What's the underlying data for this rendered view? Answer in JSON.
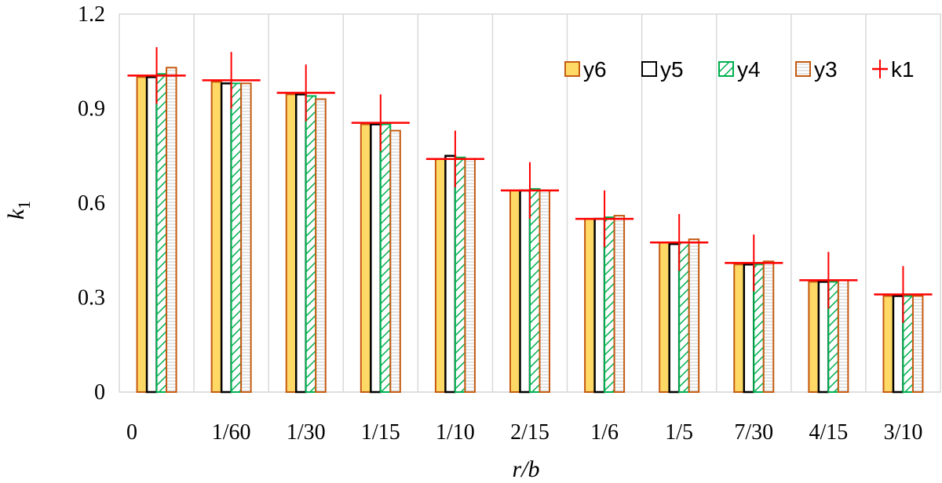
{
  "chart_data": {
    "type": "bar",
    "categories": [
      "0",
      "1/60",
      "1/30",
      "1/15",
      "1/10",
      "2/15",
      "1/6",
      "1/5",
      "7/30",
      "4/15",
      "3/10"
    ],
    "series": [
      {
        "name": "y6",
        "values": [
          1.0,
          0.985,
          0.945,
          0.85,
          0.74,
          0.64,
          0.55,
          0.475,
          0.405,
          0.35,
          0.305
        ],
        "fill": "#FFD966",
        "stroke": "#C55A11"
      },
      {
        "name": "y5",
        "values": [
          1.0,
          0.98,
          0.945,
          0.85,
          0.75,
          0.64,
          0.55,
          0.47,
          0.405,
          0.35,
          0.305
        ],
        "fill": "#FFFFFF",
        "stroke": "#000000"
      },
      {
        "name": "y4",
        "values": [
          1.01,
          0.98,
          0.94,
          0.85,
          0.745,
          0.645,
          0.555,
          0.475,
          0.405,
          0.35,
          0.305
        ],
        "fill": "hatch-green",
        "stroke": "#00B050"
      },
      {
        "name": "y3",
        "values": [
          1.03,
          0.98,
          0.93,
          0.83,
          0.74,
          0.64,
          0.56,
          0.485,
          0.415,
          0.355,
          0.305
        ],
        "fill": "hatch-gray",
        "stroke": "#C55A11"
      }
    ],
    "markers": {
      "name": "k1",
      "values": [
        1.005,
        0.99,
        0.95,
        0.855,
        0.74,
        0.64,
        0.55,
        0.475,
        0.41,
        0.355,
        0.31
      ],
      "color": "#FF0000",
      "error": 0.09
    },
    "xlabel": "r/b",
    "ylabel": "k",
    "ylabel_sub": "1",
    "ylim": [
      0,
      1.2
    ],
    "yticks": [
      "0",
      "0.3",
      "0.6",
      "0.9",
      "1.2"
    ],
    "ytick_values": [
      0,
      0.3,
      0.6,
      0.9,
      1.2
    ],
    "grid": "vertical",
    "legend_position": "top-right"
  }
}
